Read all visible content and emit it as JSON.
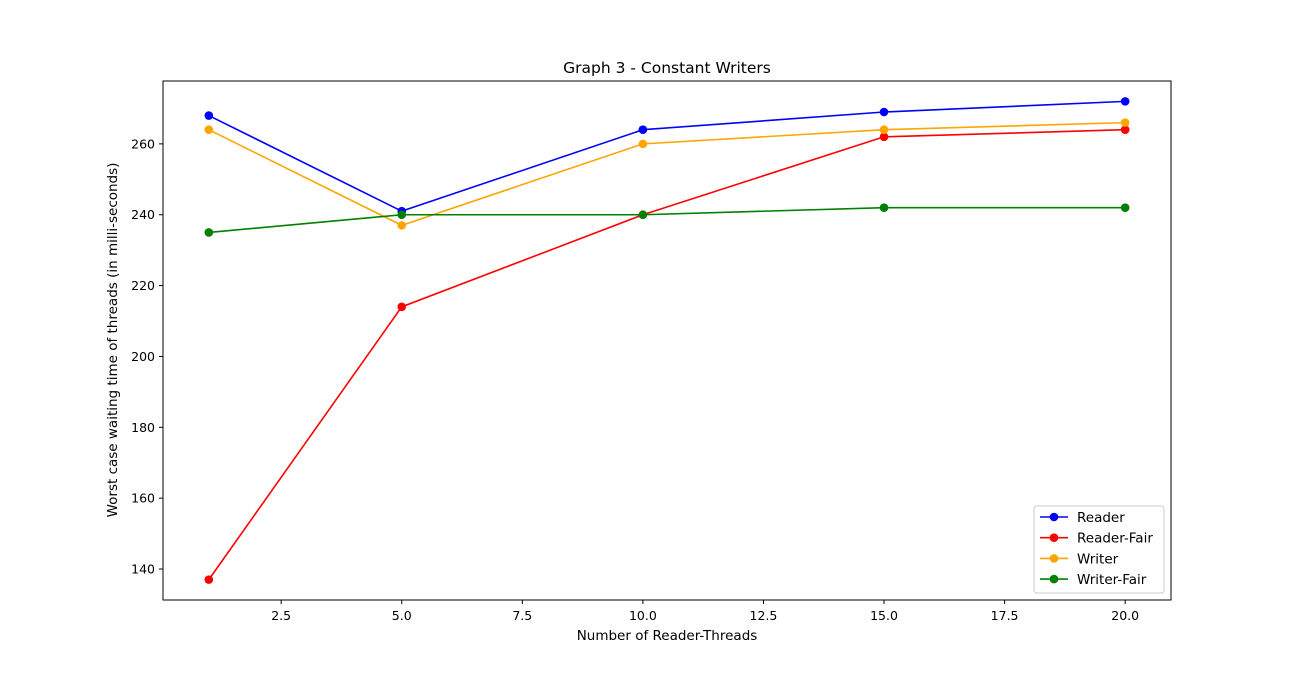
{
  "chart_data": {
    "type": "line",
    "title": "Graph 3 - Constant Writers",
    "xlabel": "Number of Reader-Threads",
    "ylabel": "Worst case waiting time of threads (in milli-seconds)",
    "x": [
      1,
      5,
      10,
      15,
      20
    ],
    "xlim": [
      0.05,
      20.95
    ],
    "ylim": [
      131.25,
      277.75
    ],
    "xticks": [
      2.5,
      5.0,
      7.5,
      10.0,
      12.5,
      15.0,
      17.5,
      20.0
    ],
    "xtick_labels": [
      "2.5",
      "5.0",
      "7.5",
      "10.0",
      "12.5",
      "15.0",
      "17.5",
      "20.0"
    ],
    "yticks": [
      140,
      160,
      180,
      200,
      220,
      240,
      260
    ],
    "ytick_labels": [
      "140",
      "160",
      "180",
      "200",
      "220",
      "240",
      "260"
    ],
    "grid": false,
    "legend_position": "lower-right",
    "series": [
      {
        "name": "Reader",
        "color": "#0000ff",
        "values": [
          268,
          241,
          264,
          269,
          272
        ]
      },
      {
        "name": "Reader-Fair",
        "color": "#ff0000",
        "values": [
          137,
          214,
          240,
          262,
          264
        ]
      },
      {
        "name": "Writer",
        "color": "#ffa500",
        "values": [
          264,
          237,
          260,
          264,
          266
        ]
      },
      {
        "name": "Writer-Fair",
        "color": "#008000",
        "values": [
          235,
          240,
          240,
          242,
          242
        ]
      }
    ]
  }
}
